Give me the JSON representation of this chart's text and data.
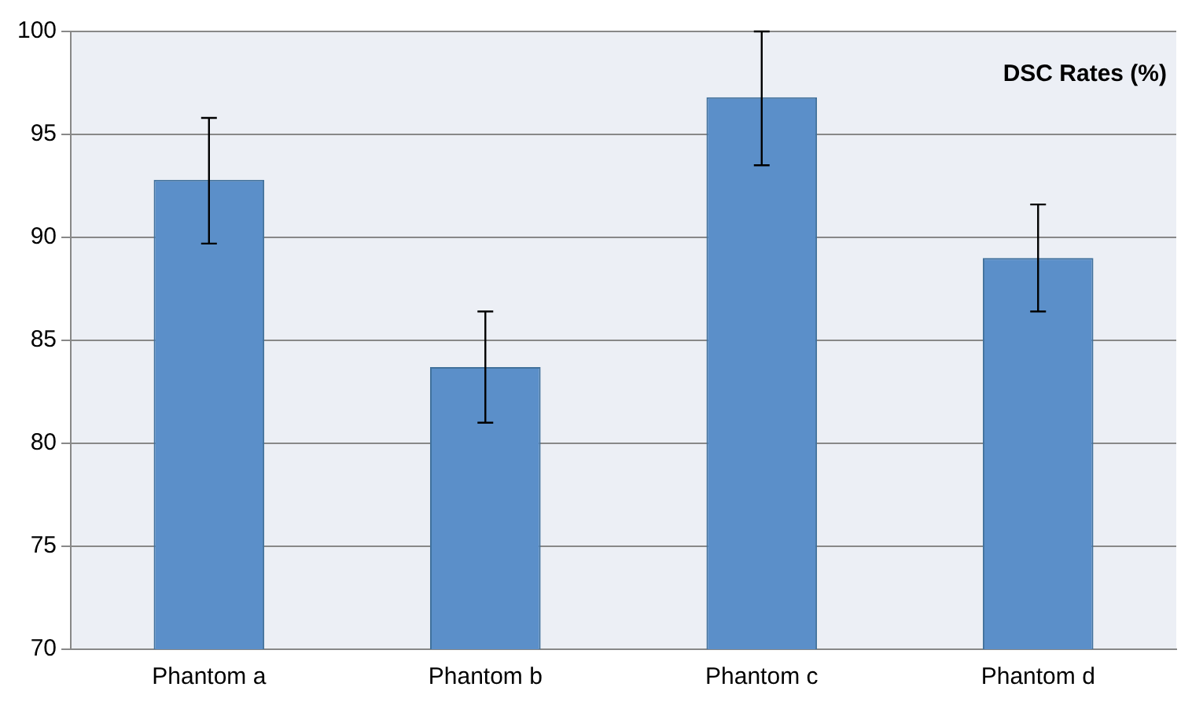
{
  "chart_data": {
    "type": "bar",
    "title": "DSC Rates (%)",
    "categories": [
      "Phantom a",
      "Phantom b",
      "Phantom c",
      "Phantom d"
    ],
    "values": [
      92.8,
      83.7,
      96.8,
      89.0
    ],
    "errors": [
      [
        89.7,
        95.8
      ],
      [
        81.0,
        86.4
      ],
      [
        93.5,
        100
      ],
      [
        86.4,
        91.6
      ]
    ],
    "color": "#5b8fc9",
    "ylim": [
      70,
      100
    ],
    "yticks": [
      70,
      75,
      80,
      85,
      90,
      95,
      100
    ],
    "grid": "y"
  }
}
